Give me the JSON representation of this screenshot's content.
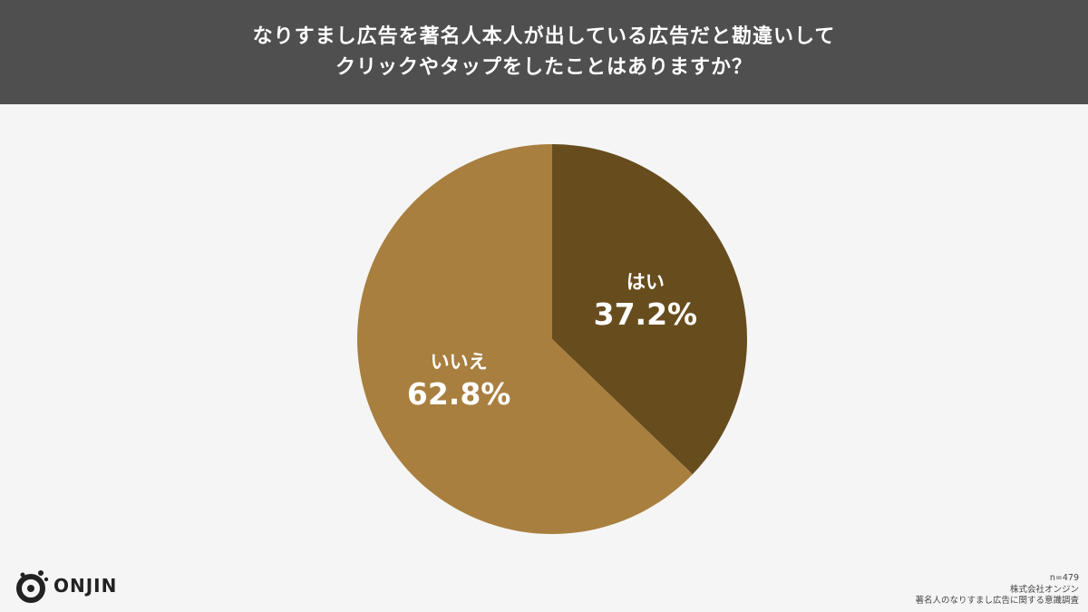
{
  "header": {
    "title_line1": "なりすまし広告を著名人本人が出している広告だと勘違いして",
    "title_line2": "クリックやタップをしたことはありますか？"
  },
  "chart_data": {
    "type": "pie",
    "start": "12 o'clock",
    "direction": "clockwise",
    "slices": [
      {
        "label": "はい",
        "value": 37.2,
        "value_label": "37.2%",
        "color": "#674c1d"
      },
      {
        "label": "いいえ",
        "value": 62.8,
        "value_label": "62.8%",
        "color": "#a87f3f"
      }
    ]
  },
  "logo": {
    "text": "ONJIN"
  },
  "footnote": {
    "sample": "n=479",
    "company": "株式会社オンジン",
    "survey": "著名人のなりすまし広告に関する意識調査"
  }
}
